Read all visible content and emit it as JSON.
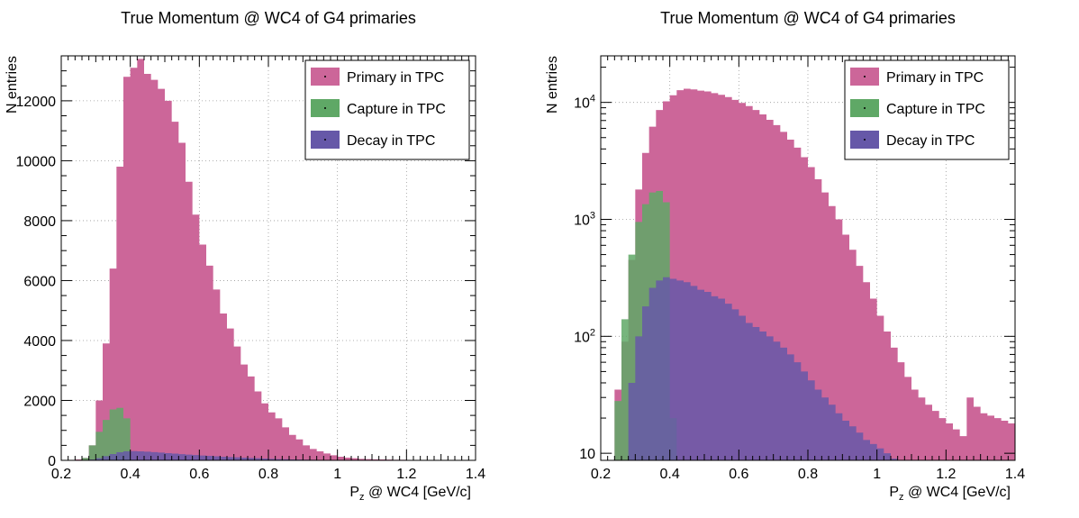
{
  "colors": {
    "primary": "#cc6699",
    "capture": "#5fa866",
    "decay": "#6658a8",
    "overlap_capture_decay": "#3d7a55",
    "overlap_decay_primary": "#5e3a8c",
    "overlap_capture_primary": "#5f8a5f",
    "grid": "#999999",
    "axis": "#000000"
  },
  "chart_data": [
    {
      "type": "area",
      "title": "True Momentum @ WC4 of G4 primaries",
      "xlabel": "P_z @ WC4 [GeV/c]",
      "ylabel": "N entries",
      "xlim": [
        0.2,
        1.4
      ],
      "ylim": [
        0,
        13500
      ],
      "yscale": "linear",
      "x_ticks": [
        "0.2",
        "0.4",
        "0.6",
        "0.8",
        "1",
        "1.2",
        "1.4"
      ],
      "y_ticks": [
        "0",
        "2000",
        "4000",
        "6000",
        "8000",
        "10000",
        "12000"
      ],
      "grid": true,
      "legend_position": "top-right",
      "legend": [
        "Primary in TPC",
        "Capture in TPC",
        "Decay in TPC"
      ],
      "bin_edges_start": 0.2,
      "bin_width": 0.02,
      "series": [
        {
          "name": "Primary in TPC",
          "values": [
            0,
            0,
            30,
            80,
            500,
            2000,
            3900,
            6400,
            9800,
            12800,
            13100,
            13400,
            12900,
            12700,
            12400,
            12000,
            11300,
            10600,
            9300,
            8200,
            7200,
            6500,
            5700,
            4900,
            4400,
            3800,
            3200,
            2800,
            2300,
            1900,
            1600,
            1400,
            1100,
            850,
            700,
            500,
            380,
            300,
            230,
            170,
            120,
            90,
            70,
            50,
            40,
            35,
            30,
            25,
            20,
            18,
            15,
            12,
            10,
            9,
            8,
            7,
            6,
            5,
            4,
            3
          ]
        },
        {
          "name": "Capture in TPC",
          "values": [
            0,
            0,
            10,
            80,
            500,
            950,
            1350,
            1700,
            1750,
            1400,
            20,
            0,
            0,
            0,
            0,
            0,
            0,
            0,
            0,
            0,
            0,
            0,
            0,
            0,
            0,
            0,
            0,
            0,
            0,
            0,
            0,
            0,
            0,
            0,
            0,
            0,
            0,
            0,
            0,
            0,
            0,
            0,
            0,
            0,
            0,
            0,
            0,
            0,
            0,
            0,
            0,
            0,
            0,
            0,
            0,
            0,
            0,
            0,
            0,
            0
          ]
        },
        {
          "name": "Decay in TPC",
          "values": [
            0,
            0,
            0,
            5,
            25,
            70,
            140,
            210,
            270,
            300,
            310,
            300,
            290,
            275,
            260,
            240,
            225,
            205,
            190,
            175,
            160,
            150,
            135,
            120,
            110,
            100,
            90,
            80,
            70,
            60,
            50,
            42,
            38,
            30,
            26,
            22,
            18,
            15,
            12,
            10,
            8,
            7,
            5,
            3,
            0,
            0,
            0,
            0,
            0,
            0,
            0,
            0,
            0,
            0,
            0,
            0,
            0,
            0,
            0,
            0
          ]
        }
      ]
    },
    {
      "type": "area",
      "title": "True Momentum @ WC4 of G4 primaries",
      "xlabel": "P_z @ WC4 [GeV/c]",
      "ylabel": "N entries",
      "xlim": [
        0.2,
        1.4
      ],
      "ylim": [
        8.7,
        25000
      ],
      "yscale": "log",
      "x_ticks": [
        "0.2",
        "0.4",
        "0.6",
        "0.8",
        "1",
        "1.2",
        "1.4"
      ],
      "y_ticks": [
        "10",
        "10^2",
        "10^3",
        "10^4"
      ],
      "grid": true,
      "legend_position": "top-right",
      "legend": [
        "Primary in TPC",
        "Capture in TPC",
        "Decay in TPC"
      ],
      "bin_edges_start": 0.2,
      "bin_width": 0.02,
      "series": [
        {
          "name": "Primary in TPC",
          "values": [
            0,
            0,
            35,
            90,
            450,
            1800,
            3700,
            6200,
            8600,
            10200,
            11500,
            12700,
            13100,
            12900,
            12600,
            12400,
            12000,
            11600,
            11100,
            10500,
            9900,
            9300,
            8600,
            7900,
            7100,
            6400,
            5600,
            4800,
            4100,
            3400,
            2800,
            2200,
            1700,
            1300,
            1000,
            740,
            550,
            400,
            290,
            210,
            150,
            110,
            80,
            60,
            45,
            35,
            30,
            26,
            23,
            20,
            18,
            16,
            14,
            30,
            25,
            22,
            21,
            20,
            19,
            18
          ]
        },
        {
          "name": "Capture in TPC",
          "values": [
            0,
            0,
            28,
            140,
            500,
            950,
            1350,
            1700,
            1750,
            1400,
            20,
            0,
            0,
            0,
            0,
            0,
            0,
            0,
            0,
            0,
            0,
            0,
            0,
            0,
            0,
            0,
            0,
            0,
            0,
            0,
            0,
            0,
            0,
            0,
            0,
            0,
            0,
            0,
            0,
            0,
            0,
            0,
            0,
            0,
            0,
            0,
            0,
            0,
            0,
            0,
            0,
            0,
            0,
            0,
            0,
            0,
            0,
            0,
            0,
            0
          ]
        },
        {
          "name": "Decay in TPC",
          "values": [
            0,
            0,
            0,
            5,
            40,
            100,
            180,
            260,
            300,
            320,
            310,
            300,
            290,
            270,
            250,
            240,
            220,
            210,
            190,
            170,
            150,
            130,
            120,
            110,
            100,
            90,
            80,
            70,
            60,
            50,
            42,
            35,
            30,
            26,
            22,
            19,
            17,
            15,
            13,
            12,
            11,
            10,
            9,
            0,
            0,
            0,
            0,
            0,
            0,
            0,
            0,
            0,
            0,
            0,
            0,
            0,
            0,
            0,
            0,
            0
          ]
        }
      ]
    }
  ]
}
